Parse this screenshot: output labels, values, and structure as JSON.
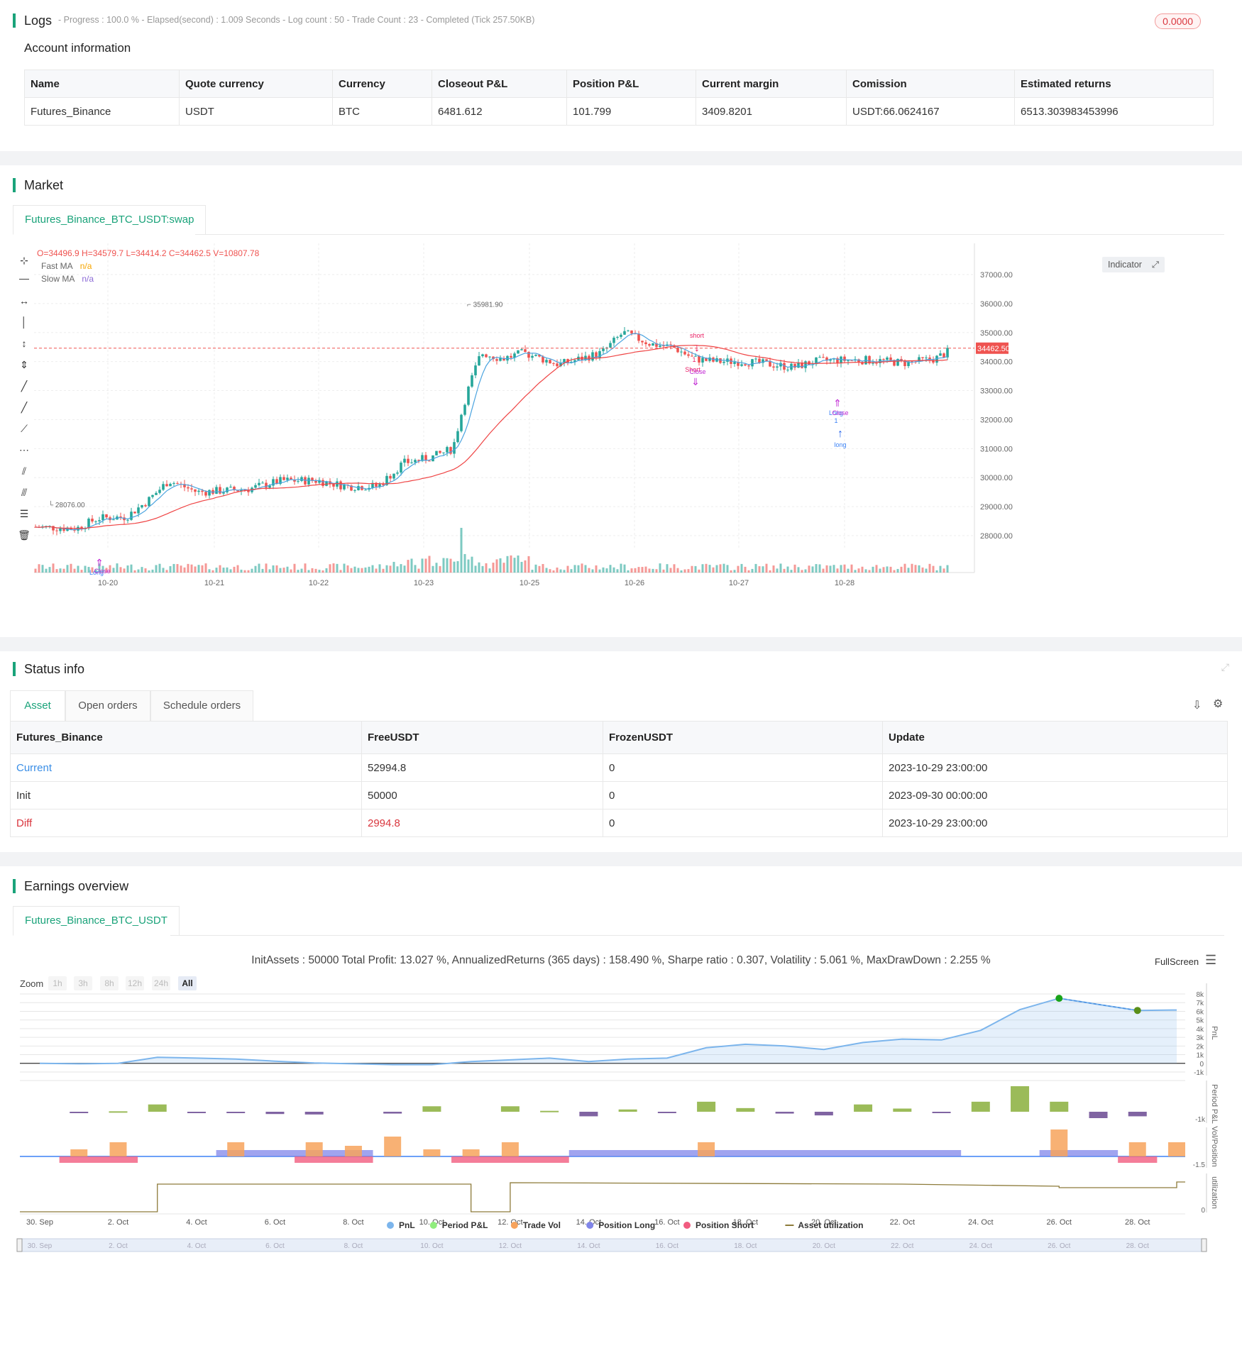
{
  "logs": {
    "title": "Logs",
    "meta": "- Progress : 100.0 % - Elapsed(second) : 1.009  Seconds - Log count : 50 - Trade Count : 23 - Completed (Tick 257.50KB)",
    "badge": "0.0000"
  },
  "account": {
    "title": "Account information",
    "headers": [
      "Name",
      "Quote currency",
      "Currency",
      "Closeout P&L",
      "Position P&L",
      "Current margin",
      "Comission",
      "Estimated returns"
    ],
    "row": [
      "Futures_Binance",
      "USDT",
      "BTC",
      "6481.612",
      "101.799",
      "3409.8201",
      "USDT:66.0624167",
      "6513.303983453996"
    ]
  },
  "market": {
    "title": "Market",
    "tab": "Futures_Binance_BTC_USDT:swap",
    "ohlc": "O=34496.9 H=34579.7 L=34414.2 C=34462.5 V=10807.78",
    "legend": [
      {
        "name": "Fast MA",
        "value": "n/a",
        "color": "#f7a600"
      },
      {
        "name": "Slow MA",
        "value": "n/a",
        "color": "#8c6bd6"
      }
    ],
    "indicator_btn": "Indicator",
    "current_price": "34462.50",
    "high_label": "35981.90",
    "low_label": "28076.00",
    "y_ticks": [
      "37000.00",
      "36000.00",
      "35000.00",
      "34000.00",
      "33000.00",
      "32000.00",
      "31000.00",
      "30000.00",
      "29000.00",
      "28000.00"
    ],
    "x_ticks": [
      "10-20",
      "10-21",
      "10-22",
      "10-23",
      "10-25",
      "10-26",
      "10-27",
      "10-28"
    ],
    "markers": {
      "short": "short",
      "short_cap": "Short",
      "close": "Close",
      "long": "long",
      "long_cap": "Long",
      "one": "1"
    },
    "colors": {
      "up": "#26a69a",
      "down": "#ef5350",
      "fast": "#4aa3df",
      "slow": "#ef4444"
    }
  },
  "status": {
    "title": "Status info",
    "tabs": [
      "Asset",
      "Open orders",
      "Schedule orders"
    ],
    "headers": [
      "Futures_Binance",
      "FreeUSDT",
      "FrozenUSDT",
      "Update"
    ],
    "rows": [
      [
        "Current",
        "52994.8",
        "0",
        "2023-10-29 23:00:00"
      ],
      [
        "Init",
        "50000",
        "0",
        "2023-09-30 00:00:00"
      ],
      [
        "Diff",
        "2994.8",
        "0",
        "2023-10-29 23:00:00"
      ]
    ]
  },
  "earnings": {
    "title": "Earnings overview",
    "tab": "Futures_Binance_BTC_USDT",
    "summary": "InitAssets : 50000 Total Profit: 13.027 %, AnnualizedReturns (365 days) : 158.490 %, Sharpe ratio : 0.307, Volatility : 5.061 %, MaxDrawDown : 2.255 %",
    "fullscreen": "FullScreen",
    "zoom_label": "Zoom",
    "zoom_options": [
      "1h",
      "3h",
      "8h",
      "12h",
      "24h",
      "All"
    ],
    "pnl_ticks": [
      "8k",
      "7k",
      "6k",
      "5k",
      "4k",
      "3k",
      "2k",
      "1k",
      "0",
      "-1k"
    ],
    "axis_titles": [
      "PnL",
      "Period P&L",
      "Vol/Position",
      "utilization"
    ],
    "period_tick": "-1k",
    "vol_tick": "-1.5",
    "util_tick": "0",
    "x_ticks": [
      "30. Sep",
      "2. Oct",
      "4. Oct",
      "6. Oct",
      "8. Oct",
      "10. Oct",
      "12. Oct",
      "14. Oct",
      "16. Oct",
      "18. Oct",
      "20. Oct",
      "22. Oct",
      "24. Oct",
      "26. Oct",
      "28. Oct"
    ],
    "legend": [
      {
        "name": "PnL",
        "color": "#7cb5ec"
      },
      {
        "name": "Period P&L",
        "color": "#90ed7d"
      },
      {
        "name": "Trade Vol",
        "color": "#f7a35c"
      },
      {
        "name": "Position Long",
        "color": "#8085e9"
      },
      {
        "name": "Position Short",
        "color": "#f15c80"
      },
      {
        "name": "Asset utilization",
        "color": "#8d7b3a"
      }
    ]
  },
  "chart_data": {
    "type": "line",
    "title": "",
    "x": [
      "30. Sep",
      "1. Oct",
      "2. Oct",
      "3. Oct",
      "4. Oct",
      "5. Oct",
      "6. Oct",
      "7. Oct",
      "8. Oct",
      "9. Oct",
      "10. Oct",
      "11. Oct",
      "12. Oct",
      "13. Oct",
      "14. Oct",
      "15. Oct",
      "16. Oct",
      "17. Oct",
      "18. Oct",
      "19. Oct",
      "20. Oct",
      "21. Oct",
      "22. Oct",
      "23. Oct",
      "24. Oct",
      "25. Oct",
      "26. Oct",
      "27. Oct",
      "28. Oct",
      "29. Oct"
    ],
    "series": [
      {
        "name": "PnL",
        "values": [
          0,
          -50,
          0,
          700,
          600,
          500,
          250,
          50,
          -50,
          -150,
          -150,
          200,
          400,
          600,
          200,
          500,
          600,
          1800,
          2200,
          2000,
          1600,
          2400,
          2800,
          2700,
          3800,
          6200,
          7500,
          6800,
          6100,
          6150
        ]
      },
      {
        "name": "Period P&L",
        "values": [
          0,
          -100,
          50,
          800,
          -150,
          -80,
          -250,
          -300,
          0,
          -200,
          600,
          0,
          600,
          100,
          -500,
          250,
          -80,
          1100,
          400,
          -200,
          -400,
          800,
          350,
          -100,
          1100,
          2800,
          1100,
          -700,
          -500,
          0
        ]
      }
    ],
    "ylim": [
      -1000,
      8000
    ]
  }
}
